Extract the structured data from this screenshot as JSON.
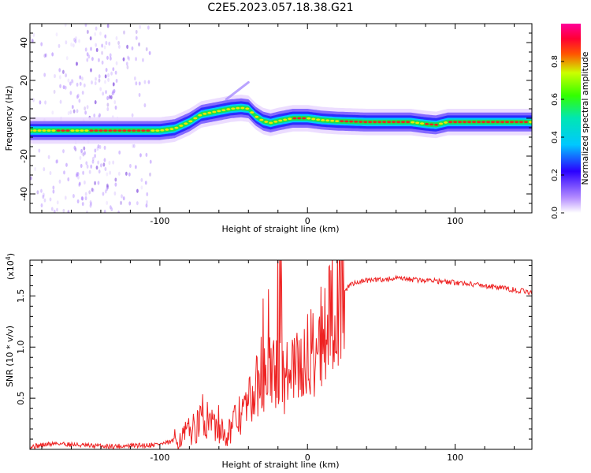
{
  "title": "C2E5.2023.057.18.38.G21",
  "chart_data": [
    {
      "type": "heatmap",
      "panel": "spectrogram",
      "xlabel": "Height of straight line (km)",
      "ylabel": "Frequency (Hz)",
      "xlim": [
        -188,
        152
      ],
      "ylim": [
        -50,
        50
      ],
      "xticks": [
        -100,
        0,
        100
      ],
      "yticks": [
        -40,
        -20,
        0,
        20,
        40
      ],
      "grid": false,
      "colorbar": {
        "label": "Normalized spectral amplitude",
        "range": [
          0,
          1
        ],
        "ticks": [
          "0.0",
          "0.2",
          "0.4",
          "0.6",
          "0.8"
        ],
        "colormap": "white-violet-blue-cyan-green-yellow-red-magenta"
      },
      "ridge": {
        "x": [
          -188,
          -150,
          -120,
          -100,
          -90,
          -80,
          -72,
          -62,
          -52,
          -45,
          -40,
          -35,
          -30,
          -25,
          -20,
          -10,
          0,
          10,
          20,
          40,
          60,
          70,
          80,
          87,
          95,
          110,
          130,
          152
        ],
        "y": [
          -6.5,
          -6.5,
          -6.5,
          -6.5,
          -5.5,
          -2,
          2,
          3.5,
          5,
          5.5,
          5,
          1,
          -1.5,
          -2.5,
          -1.5,
          0,
          0,
          -1,
          -1.5,
          -2,
          -2,
          -2,
          -3,
          -3.5,
          -2,
          -2,
          -2,
          -2
        ]
      },
      "scatter_region": {
        "x": [
          -188,
          -105
        ],
        "y": [
          -50,
          50
        ]
      }
    },
    {
      "type": "line",
      "panel": "snr",
      "xlabel": "Height of straight line (km)",
      "ylabel": "SNR (10 * v/v)",
      "multiplier_label": "(x10",
      "multiplier_exponent": "4",
      "xlim": [
        -188,
        152
      ],
      "ylim": [
        0,
        18500
      ],
      "xticks": [
        -100,
        0,
        100
      ],
      "yticklabels": [
        "0.5",
        "1.0",
        "1.5"
      ],
      "yticks": [
        5000,
        10000,
        15000
      ],
      "line_color": "#ee2222",
      "series": [
        {
          "x": [
            -188,
            -170,
            -150,
            -130,
            -110,
            -95,
            -85,
            -80,
            -75,
            -70,
            -65,
            -60,
            -55,
            -50,
            -45,
            -40,
            -35,
            -30,
            -25,
            -20,
            -15,
            -10,
            -5,
            0,
            5,
            10,
            15,
            20,
            25,
            30,
            35,
            40,
            50,
            60,
            70,
            80,
            85,
            90,
            100,
            110,
            120,
            130,
            140,
            152
          ],
          "values": [
            250,
            600,
            350,
            300,
            400,
            600,
            1200,
            1800,
            2200,
            3000,
            2800,
            2000,
            1500,
            2500,
            3500,
            4500,
            6000,
            6500,
            7500,
            7500,
            7000,
            7500,
            8000,
            9000,
            10000,
            11500,
            13000,
            14500,
            15500,
            16200,
            16400,
            16500,
            16600,
            16700,
            16600,
            16500,
            16600,
            16400,
            16300,
            16200,
            16000,
            15800,
            15600,
            15300
          ]
        }
      ]
    }
  ]
}
